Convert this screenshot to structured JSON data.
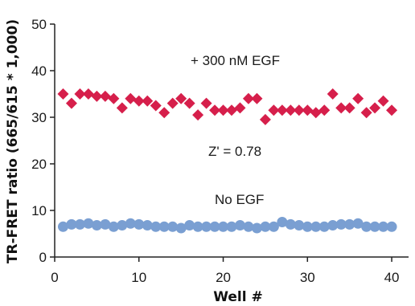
{
  "colors": {
    "with_egf": "#d61f4b",
    "no_egf": "#7a9fd2",
    "axis": "#222222"
  },
  "chart_data": {
    "type": "scatter",
    "xlabel": "Well #",
    "ylabel": "TR-FRET ratio (665/615 * 1,000)",
    "xlim": [
      0,
      42
    ],
    "ylim": [
      0,
      50
    ],
    "xticks": [
      "0",
      "10",
      "20",
      "30",
      "40"
    ],
    "yticks": [
      "0",
      "10",
      "20",
      "30",
      "40",
      "50"
    ],
    "grid": false,
    "annotations": {
      "with_egf": "+ 300 nM  EGF",
      "zprime": "Z' = 0.78",
      "no_egf": "No  EGF"
    },
    "series": [
      {
        "key": "with_egf",
        "marker": "diamond",
        "x": [
          1,
          2,
          3,
          4,
          5,
          6,
          7,
          8,
          9,
          10,
          11,
          12,
          13,
          14,
          15,
          16,
          17,
          18,
          19,
          20,
          21,
          22,
          23,
          24,
          25,
          26,
          27,
          28,
          29,
          30,
          31,
          32,
          33,
          34,
          35,
          36,
          37,
          38,
          39,
          40
        ],
        "y": [
          35,
          33,
          35,
          35,
          34.5,
          34.5,
          34,
          32,
          34,
          33.5,
          33.5,
          32.5,
          31,
          33,
          34,
          33,
          30.5,
          33,
          31.5,
          31.5,
          31.5,
          32,
          34,
          34,
          29.5,
          31.5,
          31.5,
          31.5,
          31.5,
          31.5,
          31,
          31.5,
          35,
          32,
          32,
          34,
          31,
          32,
          33.5,
          31.5
        ]
      },
      {
        "key": "no_egf",
        "marker": "circle",
        "x": [
          1,
          2,
          3,
          4,
          5,
          6,
          7,
          8,
          9,
          10,
          11,
          12,
          13,
          14,
          15,
          16,
          17,
          18,
          19,
          20,
          21,
          22,
          23,
          24,
          25,
          26,
          27,
          28,
          29,
          30,
          31,
          32,
          33,
          34,
          35,
          36,
          37,
          38,
          39,
          40
        ],
        "y": [
          6.5,
          7,
          7,
          7.2,
          6.8,
          7,
          6.5,
          6.8,
          7.2,
          7,
          6.8,
          6.5,
          6.5,
          6.5,
          6.2,
          6.8,
          6.5,
          6.5,
          6.5,
          6.5,
          6.5,
          6.8,
          6.5,
          6.2,
          6.5,
          6.5,
          7.5,
          7,
          6.8,
          6.5,
          6.5,
          6.5,
          6.8,
          7,
          7,
          7.2,
          6.5,
          6.5,
          6.5,
          6.5
        ]
      }
    ]
  }
}
